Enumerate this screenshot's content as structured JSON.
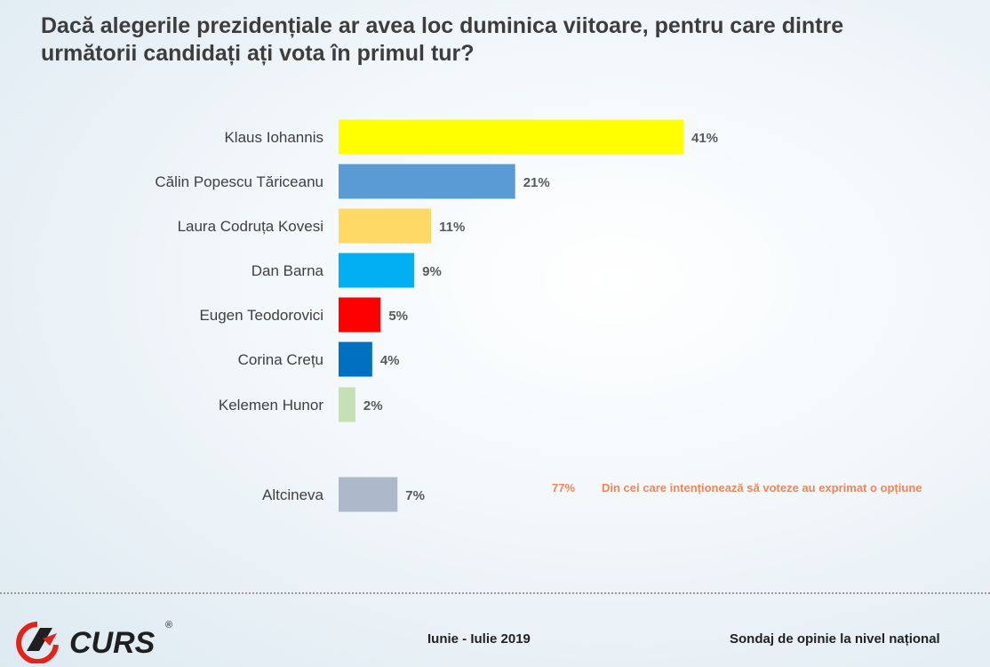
{
  "title": "Dacă alegerile prezidențiale ar avea loc duminica viitoare, pentru care dintre următorii candidați ați vota în primul tur?",
  "note": {
    "percent": "77%",
    "text": "Din cei care intenționează să voteze au exprimat o opțiune"
  },
  "footer": {
    "date": "Iunie - Iulie 2019",
    "survey": "Sondaj de opinie la nivel național"
  },
  "logo": {
    "text": "CURS",
    "registered": "®",
    "colors": {
      "red": "#e2231a",
      "dark": "#1f1f1f"
    }
  },
  "chart_data": {
    "type": "bar",
    "orientation": "horizontal",
    "categories": [
      "Klaus Iohannis",
      "Călin Popescu Tăriceanu",
      "Laura Codruța Kovesi",
      "Dan Barna",
      "Eugen Teodorovici",
      "Corina Crețu",
      "Kelemen Hunor",
      "Altcineva"
    ],
    "values": [
      41,
      21,
      11,
      9,
      5,
      4,
      2,
      7
    ],
    "value_labels": [
      "41%",
      "21%",
      "11%",
      "9%",
      "5%",
      "4%",
      "2%",
      "7%"
    ],
    "colors": [
      "#ffff00",
      "#5b9bd5",
      "#ffd966",
      "#00b0f0",
      "#ff0000",
      "#0070c0",
      "#c5e0b4",
      "#adb9ca"
    ],
    "xlim": [
      0,
      41
    ],
    "grid": false,
    "legend": false
  }
}
